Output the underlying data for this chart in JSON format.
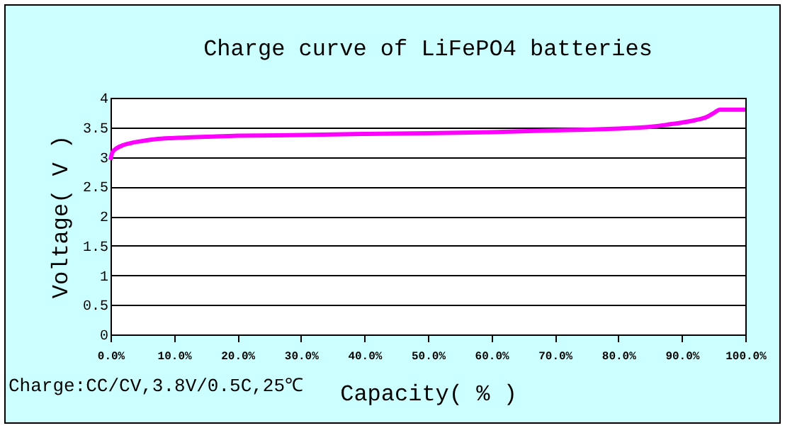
{
  "chart_data": {
    "type": "line",
    "title": "Charge curve of LiFePO4 batteries",
    "xlabel": "Capacity( % )",
    "ylabel": "Voltage( V )",
    "annotations": [
      "Charge:CC/CV,3.8V/0.5C,25℃"
    ],
    "x": [
      0,
      0.3,
      1,
      2,
      3,
      5,
      7,
      10,
      15,
      20,
      30,
      40,
      50,
      60,
      70,
      75,
      80,
      85,
      88,
      90,
      92,
      94,
      95,
      96,
      100
    ],
    "series": [
      {
        "color": "#ff00ff",
        "values": [
          2.95,
          3.08,
          3.15,
          3.2,
          3.23,
          3.27,
          3.3,
          3.32,
          3.34,
          3.36,
          3.37,
          3.39,
          3.4,
          3.42,
          3.45,
          3.46,
          3.48,
          3.51,
          3.55,
          3.58,
          3.62,
          3.68,
          3.74,
          3.8,
          3.8
        ]
      }
    ],
    "xlim": [
      0,
      100
    ],
    "ylim": [
      0,
      4
    ],
    "xticks": [
      {
        "value": 0,
        "label": "0.0%"
      },
      {
        "value": 10,
        "label": "10.0%"
      },
      {
        "value": 20,
        "label": "20.0%"
      },
      {
        "value": 30,
        "label": "30.0%"
      },
      {
        "value": 40,
        "label": "40.0%"
      },
      {
        "value": 50,
        "label": "50.0%"
      },
      {
        "value": 60,
        "label": "60.0%"
      },
      {
        "value": 70,
        "label": "70.0%"
      },
      {
        "value": 80,
        "label": "80.0%"
      },
      {
        "value": 90,
        "label": "90.0%"
      },
      {
        "value": 100,
        "label": "100.0%"
      }
    ],
    "yticks": [
      0,
      0.5,
      1,
      1.5,
      2,
      2.5,
      3,
      3.5,
      4
    ],
    "grid": "y",
    "marker": "none",
    "line_style": "solid"
  }
}
